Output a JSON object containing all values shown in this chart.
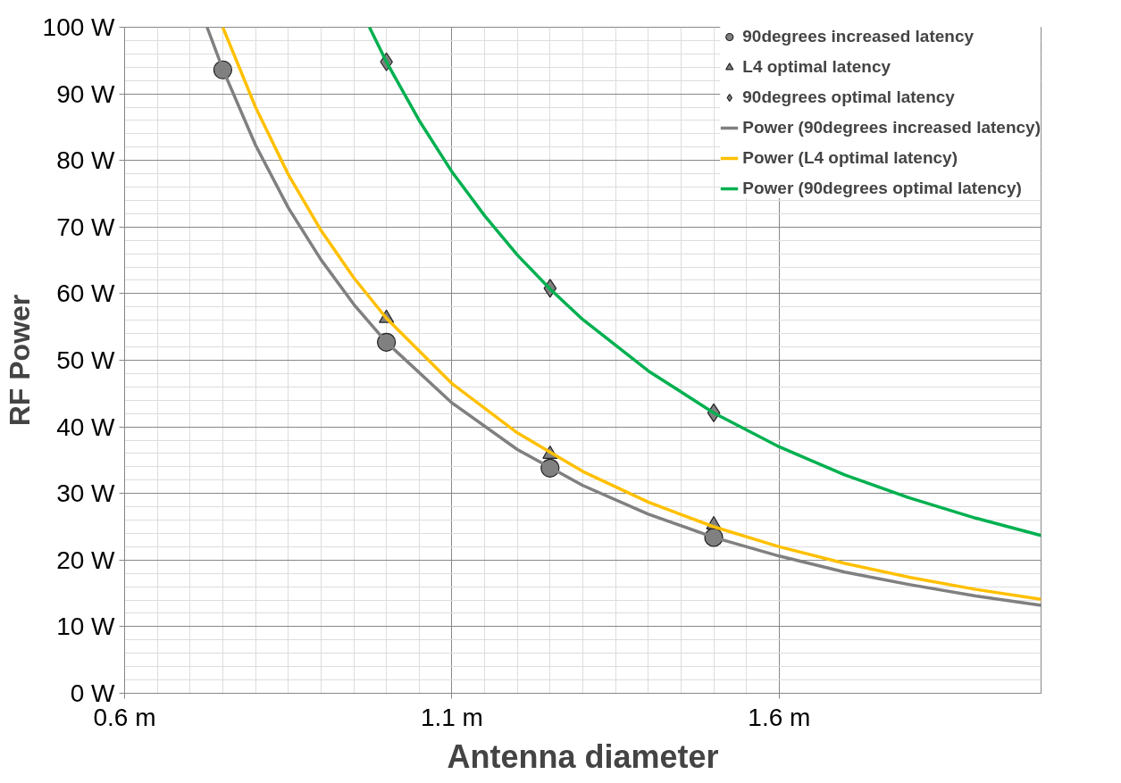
{
  "chart_data": {
    "type": "scatter",
    "xlabel": "Antenna diameter",
    "ylabel": "RF Power",
    "xlim": [
      0.6,
      2.0
    ],
    "ylim": [
      0,
      100
    ],
    "xticks": [
      {
        "value": 0.6,
        "label": "0.6 m"
      },
      {
        "value": 1.1,
        "label": "1.1 m"
      },
      {
        "value": 1.6,
        "label": "1.6 m"
      }
    ],
    "yticks": [
      {
        "value": 0,
        "label": "0 W"
      },
      {
        "value": 10,
        "label": "10 W"
      },
      {
        "value": 20,
        "label": "20 W"
      },
      {
        "value": 30,
        "label": "30 W"
      },
      {
        "value": 40,
        "label": "40 W"
      },
      {
        "value": 50,
        "label": "50 W"
      },
      {
        "value": 60,
        "label": "60 W"
      },
      {
        "value": 70,
        "label": "70 W"
      },
      {
        "value": 80,
        "label": "80 W"
      },
      {
        "value": 90,
        "label": "90 W"
      },
      {
        "value": 100,
        "label": "100 W"
      }
    ],
    "grid": true,
    "legend": "top right",
    "series": [
      {
        "name": "90degrees increased latency",
        "marker": "circle",
        "color": "#808080",
        "x": [
          0.75,
          1.0,
          1.25,
          1.5
        ],
        "values": [
          93.6,
          52.7,
          33.8,
          23.4
        ]
      },
      {
        "name": "L4 optimal latency",
        "marker": "triangle",
        "color": "#808080",
        "x": [
          1.0,
          1.25,
          1.5
        ],
        "values": [
          56.3,
          35.9,
          25.3
        ]
      },
      {
        "name": "90degrees optimal latency",
        "marker": "diamond",
        "color": "#808080",
        "x": [
          1.0,
          1.25,
          1.5
        ],
        "values": [
          94.8,
          60.8,
          42.1
        ]
      },
      {
        "name": "Power (90degrees increased latency)",
        "type": "line",
        "color": "#808080",
        "x": [
          0.726,
          0.75,
          0.8,
          0.85,
          0.9,
          0.95,
          1.0,
          1.1,
          1.2,
          1.3,
          1.4,
          1.5,
          1.6,
          1.7,
          1.8,
          1.9,
          2.0
        ],
        "values": [
          100,
          93.7,
          82.3,
          72.9,
          65.1,
          58.4,
          52.7,
          43.6,
          36.6,
          31.2,
          26.9,
          23.4,
          20.6,
          18.2,
          16.3,
          14.6,
          13.2
        ]
      },
      {
        "name": "Power (L4 optimal latency)",
        "type": "line",
        "color": "#ffc000",
        "x": [
          0.75,
          0.8,
          0.85,
          0.9,
          0.95,
          1.0,
          1.1,
          1.2,
          1.3,
          1.4,
          1.5,
          1.6,
          1.7,
          1.8,
          1.9,
          2.0
        ],
        "values": [
          100,
          88.0,
          77.9,
          69.5,
          62.4,
          56.3,
          46.5,
          39.1,
          33.3,
          28.7,
          25.0,
          22.0,
          19.5,
          17.4,
          15.6,
          14.1
        ]
      },
      {
        "name": "Power (90degrees optimal latency)",
        "type": "line",
        "color": "#00b050",
        "x": [
          0.974,
          1.0,
          1.05,
          1.1,
          1.15,
          1.2,
          1.25,
          1.3,
          1.4,
          1.5,
          1.6,
          1.7,
          1.8,
          1.9,
          2.0
        ],
        "values": [
          100,
          94.8,
          86.0,
          78.3,
          71.7,
          65.8,
          60.7,
          56.1,
          48.4,
          42.1,
          37.0,
          32.8,
          29.3,
          26.3,
          23.7
        ]
      }
    ]
  }
}
